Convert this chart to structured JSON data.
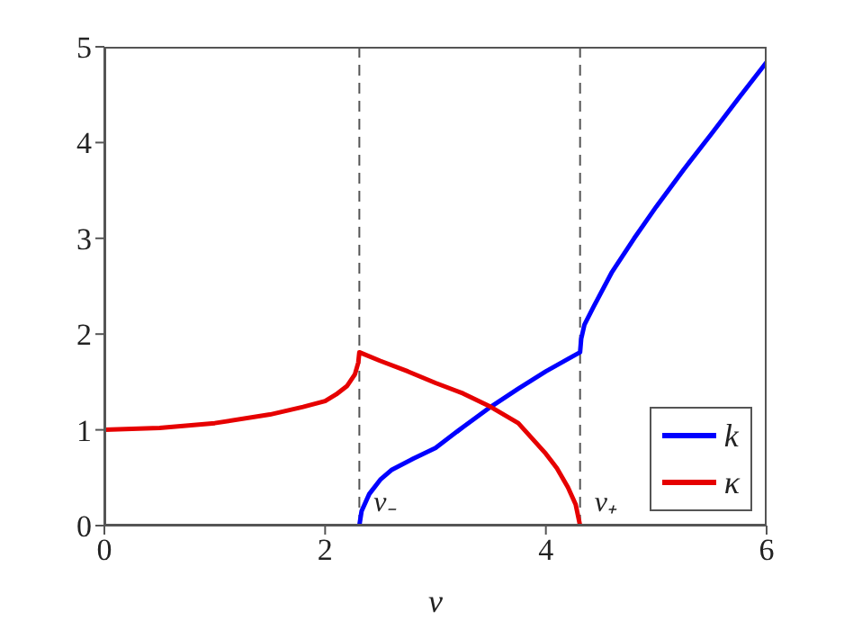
{
  "chart_data": {
    "type": "line",
    "xlabel": "v",
    "xlim": [
      0,
      6
    ],
    "xticks": [
      0,
      2,
      4,
      6
    ],
    "ylim": [
      0,
      5
    ],
    "yticks": [
      0,
      1,
      2,
      3,
      4,
      5
    ],
    "grid": false,
    "legend": "bottom right",
    "marker": "none",
    "line_style": "solid",
    "series": [
      {
        "name": "k",
        "color": "#0000ff",
        "x": [
          2.31,
          2.33,
          2.4,
          2.5,
          2.6,
          2.8,
          3,
          3.25,
          3.5,
          3.75,
          4,
          4.2,
          4.31,
          4.32,
          4.35,
          4.43,
          4.6,
          4.8,
          5,
          5.25,
          5.5,
          5.75,
          6
        ],
        "values": [
          0,
          0.15,
          0.33,
          0.48,
          0.58,
          0.7,
          0.81,
          1.03,
          1.24,
          1.43,
          1.61,
          1.74,
          1.81,
          1.95,
          2.1,
          2.28,
          2.65,
          3.0,
          3.33,
          3.72,
          4.09,
          4.47,
          4.84
        ]
      },
      {
        "name": "κ",
        "color": "#e60000",
        "x": [
          0,
          0.5,
          1,
          1.5,
          1.8,
          2,
          2.1,
          2.2,
          2.27,
          2.3,
          2.31,
          2.5,
          2.75,
          3,
          3.25,
          3.5,
          3.75,
          4,
          4.1,
          4.2,
          4.27,
          4.31
        ],
        "values": [
          1,
          1.02,
          1.07,
          1.16,
          1.24,
          1.3,
          1.37,
          1.46,
          1.58,
          1.7,
          1.81,
          1.72,
          1.61,
          1.49,
          1.38,
          1.24,
          1.07,
          0.75,
          0.6,
          0.4,
          0.22,
          0
        ]
      }
    ],
    "ref_lines": [
      {
        "axis": "x",
        "value": 2.31,
        "label": "v₋",
        "color": "#555555",
        "line_style": "dashed"
      },
      {
        "axis": "x",
        "value": 4.31,
        "label": "v₊",
        "color": "#555555",
        "line_style": "dashed"
      }
    ]
  }
}
